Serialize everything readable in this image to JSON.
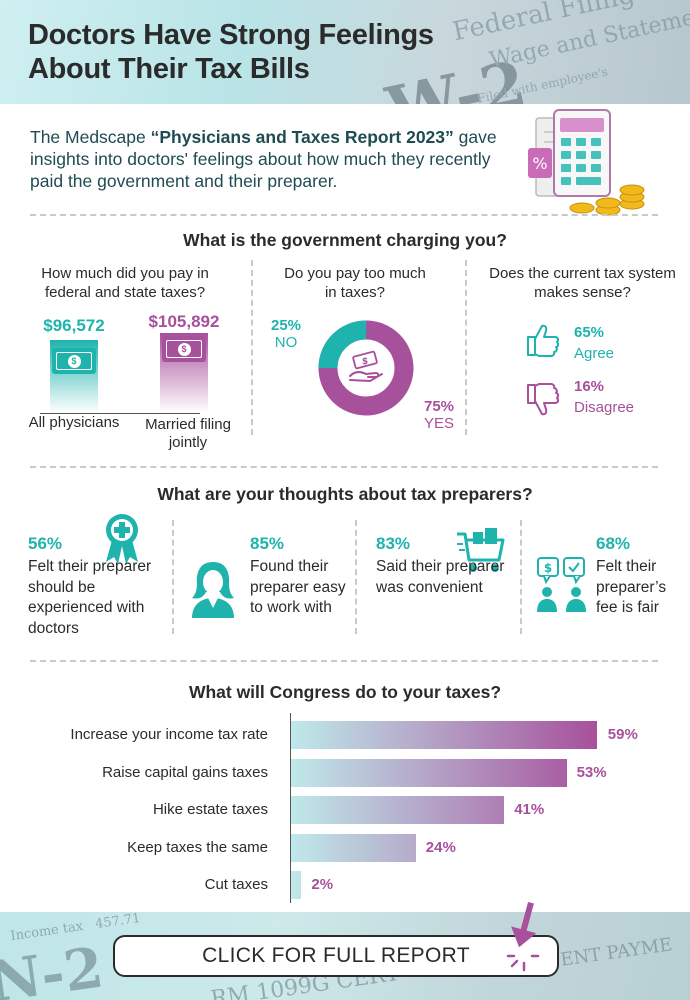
{
  "header": {
    "title": "Doctors Have Strong Feelings About Their Tax Bills"
  },
  "intro": {
    "before": "The Medscape ",
    "report": "“Physicians and Taxes Report 2023”",
    "after": " gave insights into doctors' feelings about how much they recently paid the government and their preparer."
  },
  "government": {
    "title": "What is the government charging you?",
    "taxes": {
      "question": "How much did you pay in federal and state taxes?",
      "items": [
        {
          "amount": "$96,572",
          "label": "All physicians",
          "value": 96572,
          "color": "#1fb3ad"
        },
        {
          "amount": "$105,892",
          "label": "Married filing jointly",
          "value": 105892,
          "color": "#a7509c"
        }
      ]
    },
    "too_much": {
      "question": "Do you pay too much in taxes?",
      "no_pct": "25%",
      "no_label": "NO",
      "yes_pct": "75%",
      "yes_label": "YES",
      "no_value": 25,
      "yes_value": 75
    },
    "system": {
      "question": "Does the current tax system makes sense?",
      "agree_pct": "65%",
      "agree_label": "Agree",
      "disagree_pct": "16%",
      "disagree_label": "Disagree"
    }
  },
  "preparers": {
    "title": "What are your thoughts about tax preparers?",
    "items": [
      {
        "pct": "56%",
        "text": "Felt their preparer should be experienced with doctors",
        "icon": "award-ribbon-icon"
      },
      {
        "pct": "85%",
        "text": "Found their preparer easy to work with",
        "icon": "person-icon"
      },
      {
        "pct": "83%",
        "text": "Said their preparer was convenient",
        "icon": "shopping-cart-icon"
      },
      {
        "pct": "68%",
        "text": "Felt their preparer’s fee is fair",
        "icon": "people-chat-icon"
      }
    ]
  },
  "chart_data": {
    "type": "bar",
    "orientation": "horizontal",
    "title": "What will Congress do to your taxes?",
    "categories": [
      "Increase your income tax rate",
      "Raise capital gains taxes",
      "Hike estate taxes",
      "Keep taxes the same",
      "Cut taxes"
    ],
    "values": [
      59,
      53,
      41,
      24,
      2
    ],
    "labels": [
      "59%",
      "53%",
      "41%",
      "24%",
      "2%"
    ],
    "unit": "%",
    "xlim": [
      0,
      100
    ],
    "colors": {
      "start": "#bfe9ea",
      "end": "#a7509c"
    }
  },
  "footer": {
    "cta_label": "CLICK FOR FULL REPORT"
  },
  "colors": {
    "teal": "#1fb3ad",
    "purple": "#a7509c",
    "dark_text": "#2b2b2b",
    "intro_text": "#1f4b52"
  }
}
